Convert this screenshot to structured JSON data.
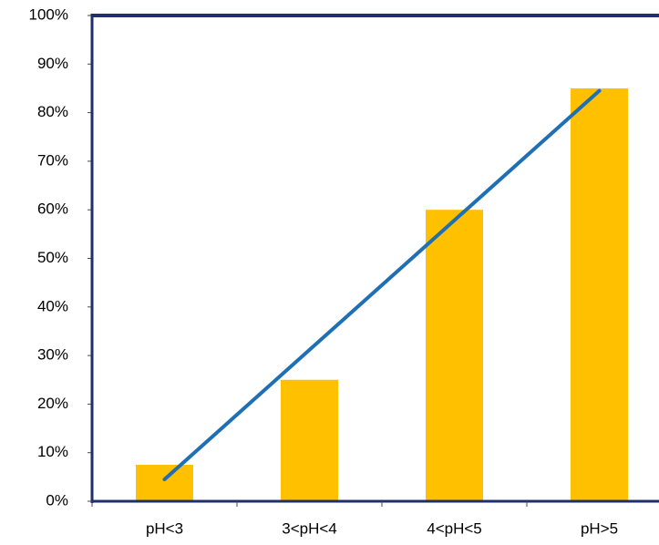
{
  "chart_data": {
    "type": "bar",
    "title": "",
    "xlabel": "",
    "ylabel": "",
    "categories": [
      "pH<3",
      "3<pH<4",
      "4<pH<5",
      "pH>5"
    ],
    "series": [
      {
        "type": "bar",
        "values": [
          7.5,
          25,
          60,
          85
        ],
        "color": "#FFC000"
      }
    ],
    "trendline": {
      "type": "linear",
      "start": 4.5,
      "end": 84.5,
      "color": "#1F6FB4"
    },
    "ylim": [
      0,
      100
    ],
    "ytick_step": 10,
    "ytick_labels": [
      "0%",
      "10%",
      "20%",
      "30%",
      "40%",
      "50%",
      "60%",
      "70%",
      "80%",
      "90%",
      "100%"
    ],
    "grid": false,
    "legend": "none",
    "frame_color": "#1F2F6B"
  }
}
